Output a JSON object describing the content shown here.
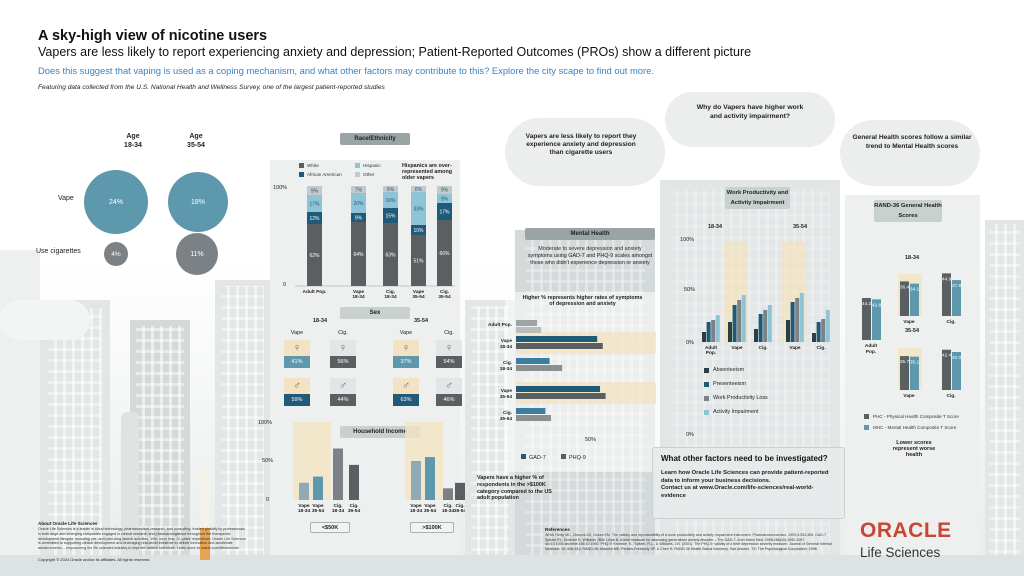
{
  "header": {
    "title": "A sky-high view of nicotine users",
    "subtitle": "Vapers are less likely to report experiencing anxiety and depression; Patient-Reported Outcomes (PROs) show a different picture",
    "question": "Does this suggest that vaping is used as a coping mechanism, and what other factors may contribute to this? Explore the city scape to find out more.",
    "note": "Featuring data collected from the U.S. National Health and Wellness Survey, one of the largest patient-reported studies"
  },
  "colors": {
    "teal": "#5e98ad",
    "dark_teal": "#1f5a78",
    "navy": "#2d5b7a",
    "grey": "#5a6062",
    "light_blue": "#8fc3d6",
    "beige": "#f3e3c2",
    "accent_blue": "#3b82c4",
    "oracle_red": "#c74634"
  },
  "age_bubbles": {
    "age1_head": "Age",
    "age1_range": "18-34",
    "age2_head": "Age",
    "age2_range": "35-54",
    "row1_label": "Vape",
    "row2_label": "Use cigarettes",
    "vape_1834": "24%",
    "vape_3554": "18%",
    "cig_1834": "4%",
    "cig_3554": "11%"
  },
  "race_section": {
    "tag": "Race/Ethnicity",
    "legend": [
      "White",
      "Hispanic",
      "African American",
      "Other"
    ],
    "callout": "Hispanics are over-represented among older vapers",
    "y_top": "100%",
    "y_bottom": "0"
  },
  "sex_section": {
    "tag": "Sex",
    "group1": "18-34",
    "group2": "35-54",
    "col_vape": "Vape",
    "col_cig": "Cig.",
    "female_1834_vape": "41%",
    "female_1834_cig": "56%",
    "female_3554_vape": "37%",
    "female_3554_cig": "54%",
    "male_1834_vape": "59%",
    "male_1834_cig": "44%",
    "male_3554_vape": "63%",
    "male_3554_cig": "46%"
  },
  "income_section": {
    "tag": "Household Income",
    "y_top": "100%",
    "y_mid": "50%",
    "y_bottom": "0",
    "tag_50k": "<$50K",
    "tag_100k": ">$100K",
    "note": "Vapers have a higher % of respondents in the >$100K category compared to the US adult population"
  },
  "mental_section": {
    "cloud": "Vapers are less likely to report they experience anxiety and depression than cigarette users",
    "tag": "Mental Health",
    "desc": "Moderate to severe depression and anxiety symptoms using GAD-7 and PHQ-9 scales amongst those who didn't experience depression or anxiety",
    "chart_title": "Higher % represents higher rates of symptoms of depression and anxiety",
    "x_mid": "50%"
  },
  "work_section": {
    "cloud": "Why do Vapers have higher work and activity impairment?",
    "tag": "Work Productivity and Activity Impairment",
    "group1": "18-34",
    "group2": "35-54",
    "y_top": "100%",
    "y_mid": "50%",
    "y_bottom": "0%"
  },
  "health_section": {
    "cloud": "General Health scores follow a similar trend to Mental Health scores",
    "tag": "RAND-36 General Health Scores",
    "group1": "18-34",
    "group2": "35-54",
    "note": "Lower scores represent worse health"
  },
  "factors_box": {
    "title": "What other factors need to be investigated?",
    "body": "Learn how Oracle Life Sciences can provide patient-reported data to inform your business decisions.",
    "contact": "Contact us at www.Oracle.com/life-sciences/real-world-evidence"
  },
  "footer": {
    "about_head": "About Oracle Life Sciences",
    "about_body": "Oracle Life Sciences is a leader in cloud technology, pharmaceutical research, and consulting, trusted globally by professionals in both large and emerging companies engaged in clinical research and pharmacovigilance throughout the therapeutic development lifecycle, including pre- and post-drug launch activities. With more than 20 years' experience, Oracle Life Sciences is committed to supporting clinical development and leveraging real-world evidence to deliver innovation and accelerate advancements – empowering the life sciences industry to improve patient outcomes. Learn more at oracle.com/lifesciences",
    "copyright": "Copyright © 2024 Oracle and/or its affiliates. All rights reserved.",
    "refs_head": "References",
    "refs_body": "WHAI Reilly MC, Zbrozek AS, Dukes EM. The validity and reproducibility of a work productivity and activity impairment instrument. Pharmacoeconomics. 1993;4:353-365. GAD-7 Spitzer RL, Kroenke K, Williams JBW, Löwe B. A brief measure for assessing generalized anxiety disorder – The GAD-7. Arch Intern Med. 2006;166(10):1092-1097. doi:10.1001/archinte.166.10.1092. PHQ-9: Kroenke, K., Spitzer, R.L., & Williams, J.B. (2001). The PHQ-9: validity of a brief depression severity measure. Journal of General Internal Medicine, 16, 606-613. RAND-36: Maruish ME. Perkins-Freebody SP, & Chen H. RAND-36 Health Status Inventory. San Antonio, TX: The Psychological Corporation; 1998.",
    "oracle": "ORACLE",
    "ls": "Life Sciences"
  },
  "chart_data": [
    {
      "type": "bar",
      "name": "Race/Ethnicity",
      "categories": [
        "Adult Pop.",
        "Vape 18-34",
        "Cig. 18-34",
        "Vape 35-54",
        "Cig. 35-54"
      ],
      "series": [
        {
          "name": "White",
          "values": [
            62,
            64,
            63,
            51,
            66
          ]
        },
        {
          "name": "African American",
          "values": [
            12,
            9,
            15,
            10,
            17
          ]
        },
        {
          "name": "Hispanic",
          "values": [
            17,
            20,
            16,
            33,
            9
          ]
        },
        {
          "name": "Other",
          "values": [
            9,
            7,
            6,
            6,
            9
          ]
        }
      ],
      "ylim": [
        0,
        100
      ]
    },
    {
      "type": "bar",
      "name": "Household Income",
      "categories": [
        "Vape 18-34",
        "Vape 35-54",
        "Cig. 18-34",
        "Cig. 35-54"
      ],
      "series": [
        {
          "name": "<$50K",
          "values": [
            22,
            30,
            66,
            45
          ]
        },
        {
          "name": ">$100K",
          "values": [
            50,
            55,
            15,
            22
          ]
        }
      ],
      "ylim": [
        0,
        100
      ]
    },
    {
      "type": "bar",
      "name": "Mental Health",
      "categories": [
        "Adult Pop.",
        "Vape 18-34",
        "Cig. 18-34",
        "Vape 35-54",
        "Cig. 35-54"
      ],
      "series": [
        {
          "name": "GAD-7",
          "values": [
            15,
            58,
            24,
            60,
            21
          ]
        },
        {
          "name": "PHQ-9",
          "values": [
            18,
            62,
            33,
            64,
            25
          ]
        }
      ],
      "xlim": [
        0,
        100
      ]
    },
    {
      "type": "bar",
      "name": "Work Productivity and Activity Impairment",
      "categories": [
        "Adult Pop.",
        "Vape 18-34",
        "Cig. 18-34",
        "Vape 35-54",
        "Cig. 35-54"
      ],
      "series": [
        {
          "name": "Absenteeism",
          "values": [
            10,
            20,
            13,
            22,
            9
          ]
        },
        {
          "name": "Presenteeism",
          "values": [
            20,
            37,
            28,
            40,
            20
          ]
        },
        {
          "name": "Work Productivity Loss",
          "values": [
            22,
            42,
            32,
            44,
            23
          ]
        },
        {
          "name": "Activity Impairment",
          "values": [
            27,
            47,
            37,
            49,
            32
          ]
        }
      ],
      "ylim": [
        0,
        100
      ]
    },
    {
      "type": "bar",
      "name": "RAND-36 General Health Scores",
      "categories": [
        "Adult Pop.",
        "Vape 18-34",
        "Cig. 18-34",
        "Vape 35-54",
        "Cig. 35-54"
      ],
      "series": [
        {
          "name": "PHC - Physical Health Composite T Score",
          "values": [
            44.2,
            36.4,
            44.9,
            35.7,
            42.4
          ]
        },
        {
          "name": "MHC - Mental Health Composite T Score",
          "values": [
            42.8,
            34.1,
            37.8,
            35.1,
            40.0
          ]
        }
      ]
    }
  ]
}
